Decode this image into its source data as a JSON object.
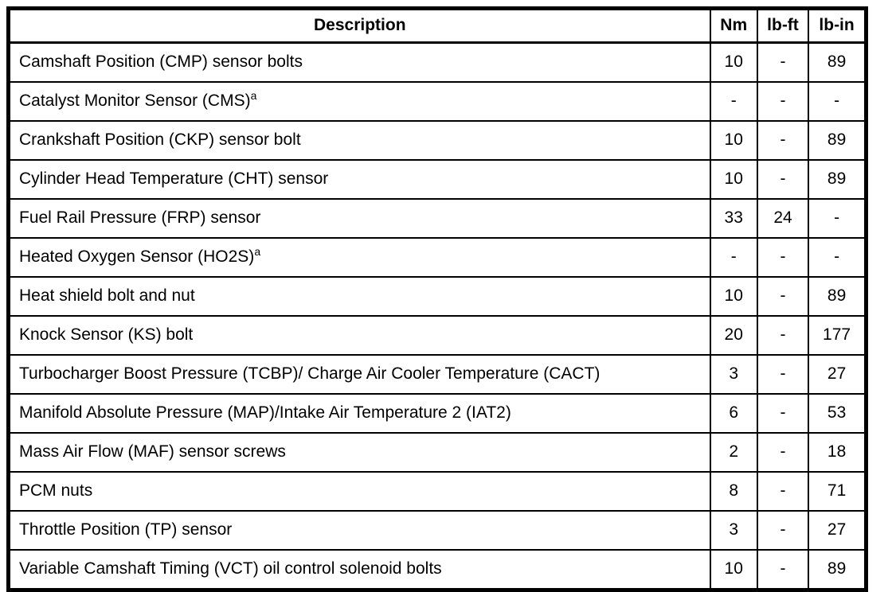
{
  "page": {
    "background_color": "#ffffff",
    "border_color": "#000000",
    "text_color": "#000000"
  },
  "table": {
    "columns": [
      {
        "label": "Description"
      },
      {
        "label": "Nm"
      },
      {
        "label": "lb-ft"
      },
      {
        "label": "lb-in"
      }
    ],
    "rows": [
      {
        "description": "Camshaft Position (CMP) sensor bolts",
        "footnote": "",
        "nm": "10",
        "lbft": "-",
        "lbin": "89"
      },
      {
        "description": "Catalyst Monitor Sensor (CMS)",
        "footnote": "a",
        "nm": "-",
        "lbft": "-",
        "lbin": "-"
      },
      {
        "description": "Crankshaft Position (CKP) sensor bolt",
        "footnote": "",
        "nm": "10",
        "lbft": "-",
        "lbin": "89"
      },
      {
        "description": "Cylinder Head Temperature (CHT) sensor",
        "footnote": "",
        "nm": "10",
        "lbft": "-",
        "lbin": "89"
      },
      {
        "description": "Fuel Rail Pressure (FRP) sensor",
        "footnote": "",
        "nm": "33",
        "lbft": "24",
        "lbin": "-"
      },
      {
        "description": "Heated Oxygen Sensor (HO2S)",
        "footnote": "a",
        "nm": "-",
        "lbft": "-",
        "lbin": "-"
      },
      {
        "description": "Heat shield bolt and nut",
        "footnote": "",
        "nm": "10",
        "lbft": "-",
        "lbin": "89"
      },
      {
        "description": "Knock Sensor (KS) bolt",
        "footnote": "",
        "nm": "20",
        "lbft": "-",
        "lbin": "177"
      },
      {
        "description": "Turbocharger Boost Pressure (TCBP)/ Charge Air Cooler Temperature (CACT)",
        "footnote": "",
        "nm": "3",
        "lbft": "-",
        "lbin": "27"
      },
      {
        "description": "Manifold Absolute Pressure (MAP)/Intake Air Temperature 2 (IAT2)",
        "footnote": "",
        "nm": "6",
        "lbft": "-",
        "lbin": "53"
      },
      {
        "description": "Mass Air Flow (MAF) sensor screws",
        "footnote": "",
        "nm": "2",
        "lbft": "-",
        "lbin": "18"
      },
      {
        "description": "PCM nuts",
        "footnote": "",
        "nm": "8",
        "lbft": "-",
        "lbin": "71"
      },
      {
        "description": "Throttle Position (TP) sensor",
        "footnote": "",
        "nm": "3",
        "lbft": "-",
        "lbin": "27"
      },
      {
        "description": "Variable Camshaft Timing (VCT) oil control solenoid bolts",
        "footnote": "",
        "nm": "10",
        "lbft": "-",
        "lbin": "89"
      }
    ]
  }
}
